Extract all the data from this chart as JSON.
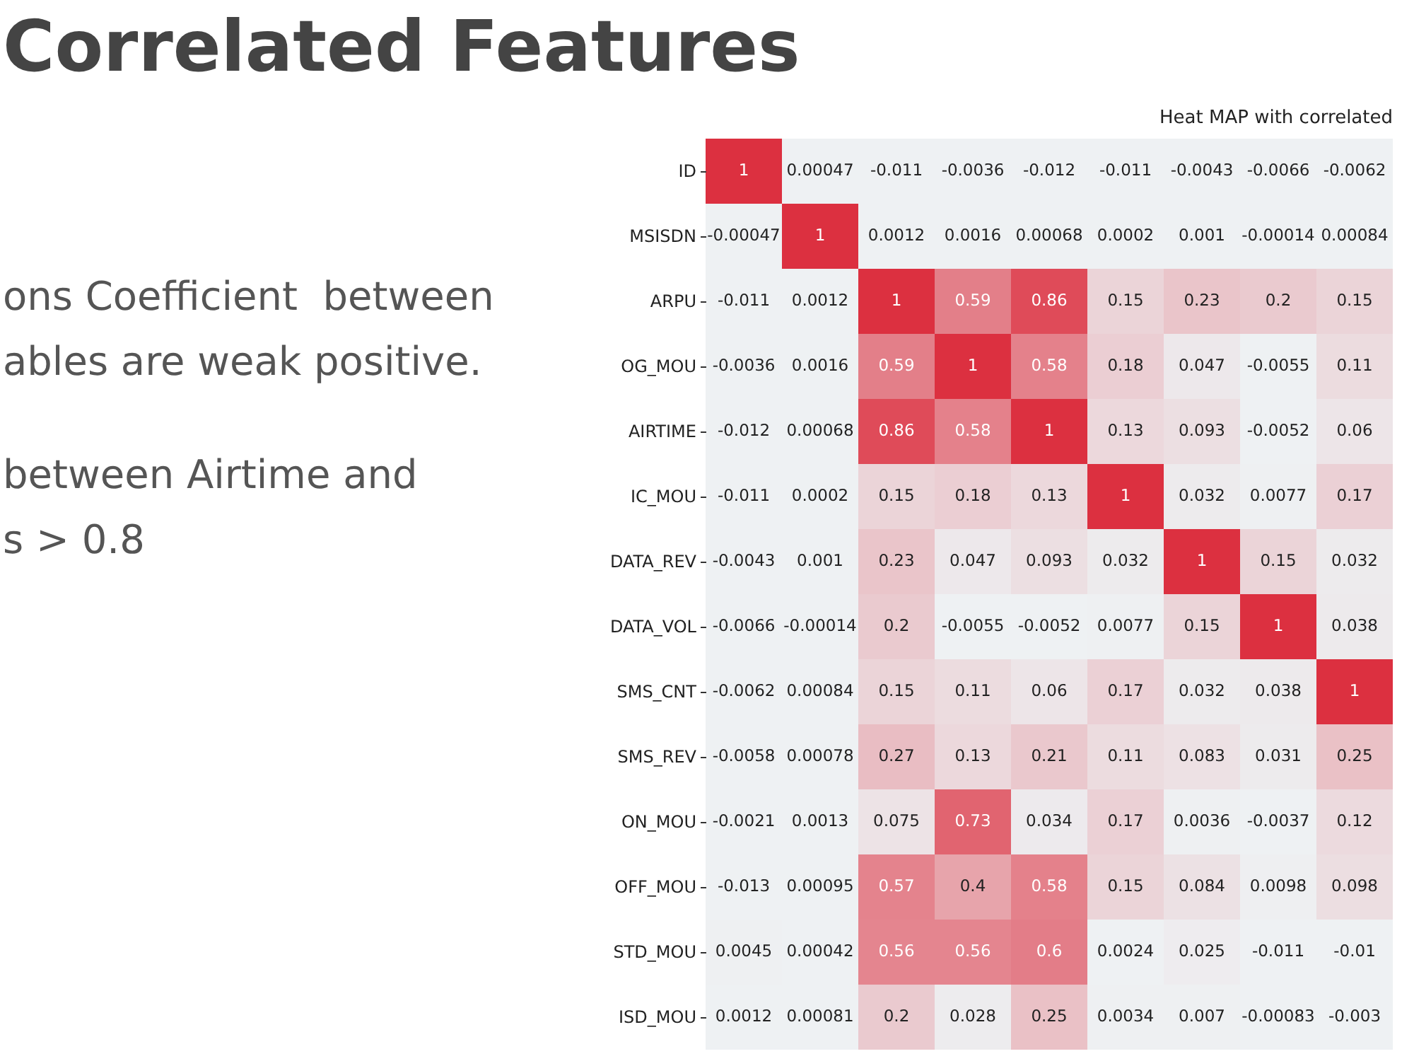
{
  "chart_data": {
    "type": "heatmap",
    "title": "Correlated Features",
    "subtitle": "Heat MAP with correlated",
    "annotations": [
      "ons Coefficient  between",
      "ables are weak positive.",
      "between Airtime and",
      "s > 0.8"
    ],
    "categories": [
      null,
      null,
      null,
      null,
      null,
      null,
      null,
      null,
      null
    ],
    "y_categories": [
      "ID",
      "MSISDN",
      "ARPU",
      "OG_MOU",
      "AIRTIME",
      "IC_MOU",
      "DATA_REV",
      "DATA_VOL",
      "SMS_CNT",
      "SMS_REV",
      "ON_MOU",
      "OFF_MOU",
      "STD_MOU",
      "ISD_MOU"
    ],
    "cells": [
      [
        1,
        0.00047,
        -0.011,
        -0.0036,
        -0.012,
        -0.011,
        -0.0043,
        -0.0066,
        -0.0062
      ],
      [
        -0.00047,
        1,
        0.0012,
        0.0016,
        0.00068,
        0.0002,
        0.001,
        -0.00014,
        0.00084
      ],
      [
        -0.011,
        0.0012,
        1,
        0.59,
        0.86,
        0.15,
        0.23,
        0.2,
        0.15
      ],
      [
        -0.0036,
        0.0016,
        0.59,
        1,
        0.58,
        0.18,
        0.047,
        -0.0055,
        0.11
      ],
      [
        -0.012,
        0.00068,
        0.86,
        0.58,
        1,
        0.13,
        0.093,
        -0.0052,
        0.06
      ],
      [
        -0.011,
        0.0002,
        0.15,
        0.18,
        0.13,
        1,
        0.032,
        0.0077,
        0.17
      ],
      [
        -0.0043,
        0.001,
        0.23,
        0.047,
        0.093,
        0.032,
        1,
        0.15,
        0.032
      ],
      [
        -0.0066,
        -0.00014,
        0.2,
        -0.0055,
        -0.0052,
        0.0077,
        0.15,
        1,
        0.038
      ],
      [
        -0.0062,
        0.00084,
        0.15,
        0.11,
        0.06,
        0.17,
        0.032,
        0.038,
        1
      ],
      [
        -0.0058,
        0.00078,
        0.27,
        0.13,
        0.21,
        0.11,
        0.083,
        0.031,
        0.25
      ],
      [
        -0.0021,
        0.0013,
        0.075,
        0.73,
        0.034,
        0.17,
        0.0036,
        -0.0037,
        0.12
      ],
      [
        -0.013,
        0.00095,
        0.57,
        0.4,
        0.58,
        0.15,
        0.084,
        0.0098,
        0.098
      ],
      [
        0.0045,
        0.00042,
        0.56,
        0.56,
        0.6,
        0.0024,
        0.025,
        -0.011,
        -0.01
      ],
      [
        0.0012,
        0.00081,
        0.2,
        0.028,
        0.25,
        0.0034,
        0.007,
        -0.00083,
        -0.003
      ]
    ],
    "data_labels": true
  }
}
